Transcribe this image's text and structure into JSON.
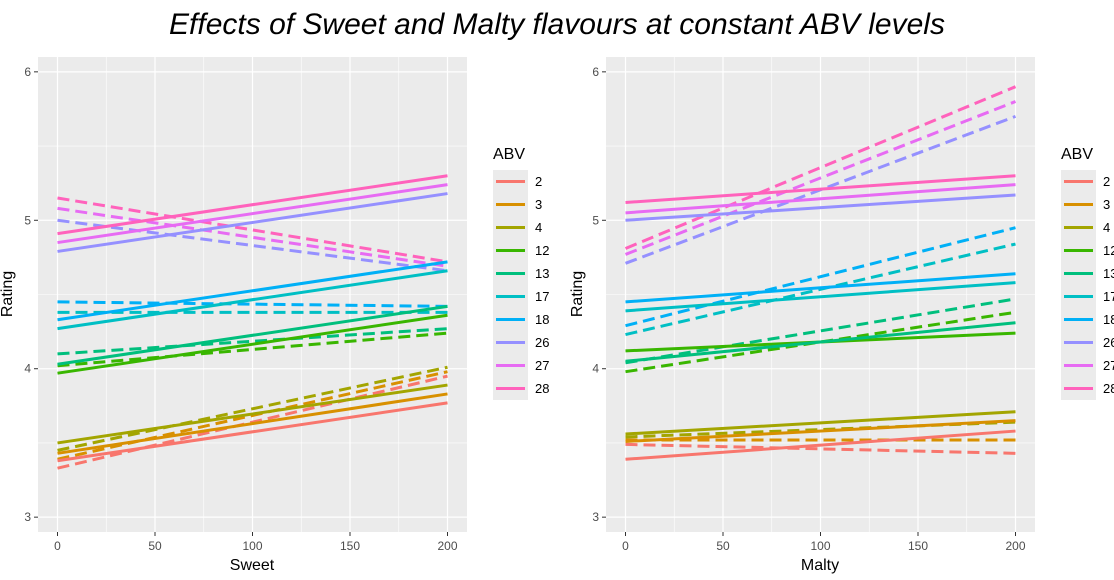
{
  "title": "Effects of Sweet and Malty flavours at constant ABV levels",
  "legend_title": "ABV",
  "colors": {
    "2": "#F8766D",
    "3": "#D89000",
    "4": "#A3A500",
    "12": "#39B600",
    "13": "#00BF7D",
    "17": "#00BFC4",
    "18": "#00B0F6",
    "26": "#9590FF",
    "27": "#E76BF3",
    "28": "#FF62BC"
  },
  "chart_data": [
    {
      "type": "line",
      "xlabel": "Sweet",
      "ylabel": "Rating",
      "xlim": [
        -10,
        210
      ],
      "ylim": [
        2.9,
        6.1
      ],
      "xticks": [
        0,
        50,
        100,
        150,
        200
      ],
      "yticks": [
        3,
        4,
        5,
        6
      ],
      "grid": true,
      "legend_position": "right",
      "series": [
        {
          "name": "2",
          "solid": [
            [
              0,
              3.38
            ],
            [
              200,
              3.77
            ]
          ],
          "dashed": [
            [
              0,
              3.33
            ],
            [
              200,
              3.95
            ]
          ]
        },
        {
          "name": "3",
          "solid": [
            [
              0,
              3.43
            ],
            [
              200,
              3.83
            ]
          ],
          "dashed": [
            [
              0,
              3.39
            ],
            [
              200,
              3.98
            ]
          ]
        },
        {
          "name": "4",
          "solid": [
            [
              0,
              3.5
            ],
            [
              200,
              3.89
            ]
          ],
          "dashed": [
            [
              0,
              3.45
            ],
            [
              200,
              4.01
            ]
          ]
        },
        {
          "name": "12",
          "solid": [
            [
              0,
              3.97
            ],
            [
              200,
              4.36
            ]
          ],
          "dashed": [
            [
              0,
              4.02
            ],
            [
              200,
              4.24
            ]
          ]
        },
        {
          "name": "13",
          "solid": [
            [
              0,
              4.03
            ],
            [
              200,
              4.42
            ]
          ],
          "dashed": [
            [
              0,
              4.1
            ],
            [
              200,
              4.27
            ]
          ]
        },
        {
          "name": "17",
          "solid": [
            [
              0,
              4.27
            ],
            [
              200,
              4.66
            ]
          ],
          "dashed": [
            [
              0,
              4.38
            ],
            [
              200,
              4.38
            ]
          ]
        },
        {
          "name": "18",
          "solid": [
            [
              0,
              4.33
            ],
            [
              200,
              4.72
            ]
          ],
          "dashed": [
            [
              0,
              4.45
            ],
            [
              200,
              4.42
            ]
          ]
        },
        {
          "name": "26",
          "solid": [
            [
              0,
              4.79
            ],
            [
              200,
              5.18
            ]
          ],
          "dashed": [
            [
              0,
              5.0
            ],
            [
              200,
              4.66
            ]
          ]
        },
        {
          "name": "27",
          "solid": [
            [
              0,
              4.85
            ],
            [
              200,
              5.24
            ]
          ],
          "dashed": [
            [
              0,
              5.08
            ],
            [
              200,
              4.69
            ]
          ]
        },
        {
          "name": "28",
          "solid": [
            [
              0,
              4.91
            ],
            [
              200,
              5.3
            ]
          ],
          "dashed": [
            [
              0,
              5.15
            ],
            [
              200,
              4.72
            ]
          ]
        }
      ]
    },
    {
      "type": "line",
      "xlabel": "Malty",
      "ylabel": "Rating",
      "xlim": [
        -10,
        210
      ],
      "ylim": [
        2.9,
        6.1
      ],
      "xticks": [
        0,
        50,
        100,
        150,
        200
      ],
      "yticks": [
        3,
        4,
        5,
        6
      ],
      "grid": true,
      "legend_position": "right",
      "series": [
        {
          "name": "2",
          "solid": [
            [
              0,
              3.39
            ],
            [
              200,
              3.58
            ]
          ],
          "dashed": [
            [
              0,
              3.49
            ],
            [
              200,
              3.43
            ]
          ]
        },
        {
          "name": "3",
          "solid": [
            [
              0,
              3.51
            ],
            [
              200,
              3.65
            ]
          ],
          "dashed": [
            [
              0,
              3.52
            ],
            [
              200,
              3.52
            ]
          ]
        },
        {
          "name": "4",
          "solid": [
            [
              0,
              3.56
            ],
            [
              200,
              3.71
            ]
          ],
          "dashed": [
            [
              0,
              3.54
            ],
            [
              200,
              3.64
            ]
          ]
        },
        {
          "name": "12",
          "solid": [
            [
              0,
              4.12
            ],
            [
              200,
              4.24
            ]
          ],
          "dashed": [
            [
              0,
              3.98
            ],
            [
              200,
              4.38
            ]
          ]
        },
        {
          "name": "13",
          "solid": [
            [
              0,
              4.05
            ],
            [
              200,
              4.31
            ]
          ],
          "dashed": [
            [
              0,
              4.04
            ],
            [
              200,
              4.47
            ]
          ]
        },
        {
          "name": "17",
          "solid": [
            [
              0,
              4.39
            ],
            [
              200,
              4.58
            ]
          ],
          "dashed": [
            [
              0,
              4.23
            ],
            [
              200,
              4.84
            ]
          ]
        },
        {
          "name": "18",
          "solid": [
            [
              0,
              4.45
            ],
            [
              200,
              4.64
            ]
          ],
          "dashed": [
            [
              0,
              4.29
            ],
            [
              200,
              4.95
            ]
          ]
        },
        {
          "name": "26",
          "solid": [
            [
              0,
              5.0
            ],
            [
              200,
              5.17
            ]
          ],
          "dashed": [
            [
              0,
              4.71
            ],
            [
              200,
              5.7
            ]
          ]
        },
        {
          "name": "27",
          "solid": [
            [
              0,
              5.05
            ],
            [
              200,
              5.24
            ]
          ],
          "dashed": [
            [
              0,
              4.77
            ],
            [
              200,
              5.8
            ]
          ]
        },
        {
          "name": "28",
          "solid": [
            [
              0,
              5.12
            ],
            [
              200,
              5.3
            ]
          ],
          "dashed": [
            [
              0,
              4.81
            ],
            [
              200,
              5.9
            ]
          ]
        }
      ]
    }
  ]
}
